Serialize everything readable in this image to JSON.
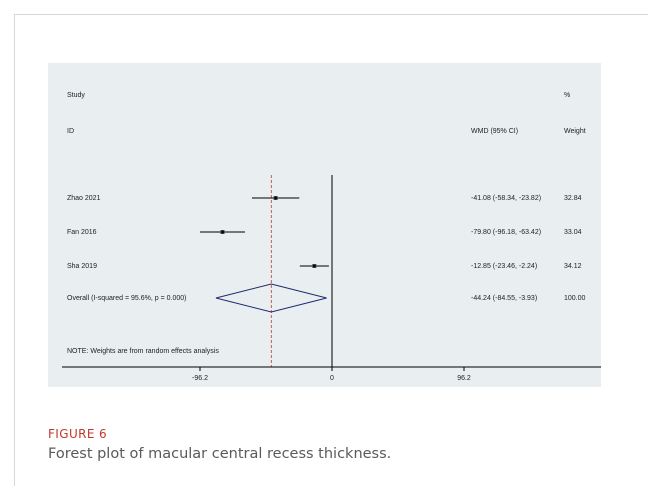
{
  "figure": {
    "label": "FIGURE 6",
    "caption": "Forest plot of macular central recess thickness."
  },
  "chart_data": {
    "type": "forest",
    "header": {
      "study_col": [
        "Study",
        "ID"
      ],
      "effect_col": "WMD (95% CI)",
      "weight_col": [
        "%",
        "Weight"
      ]
    },
    "studies": [
      {
        "label": "Zhao 2021",
        "effect": -41.08,
        "lower": -58.34,
        "upper": -23.82,
        "ci_text": "-41.08 (-58.34, -23.82)",
        "weight": "32.84"
      },
      {
        "label": "Fan 2016",
        "effect": -79.8,
        "lower": -96.18,
        "upper": -63.42,
        "ci_text": "-79.80 (-96.18, -63.42)",
        "weight": "33.04"
      },
      {
        "label": "Sha 2019",
        "effect": -12.85,
        "lower": -23.46,
        "upper": -2.24,
        "ci_text": "-12.85 (-23.46, -2.24)",
        "weight": "34.12"
      }
    ],
    "overall": {
      "label": "Overall  (I-squared = 95.6%, p = 0.000)",
      "effect": -44.24,
      "lower": -84.55,
      "upper": -3.93,
      "ci_text": "-44.24 (-84.55, -3.93)",
      "weight": "100.00"
    },
    "note": "NOTE: Weights are from random effects analysis",
    "x_ticks": [
      {
        "value": -96.2,
        "label": "-96.2"
      },
      {
        "value": 0,
        "label": "0"
      },
      {
        "value": 96.2,
        "label": "96.2"
      }
    ],
    "xlim": [
      -96.2,
      96.2
    ],
    "null_line": 0,
    "colors": {
      "panel_bg": "#e9eef1",
      "ci_line": "#000000",
      "diamond": "#1f2a6b",
      "pooled_line": "#c0392b",
      "text": "#222222"
    }
  }
}
